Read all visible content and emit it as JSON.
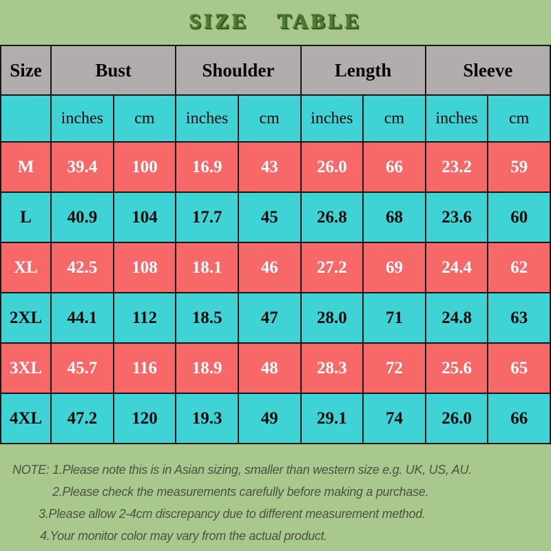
{
  "title": "SIZE TABLE",
  "colors": {
    "background_green": "#a8c88d",
    "title_green": "#4e7a33",
    "header_gray": "#b3acac",
    "row_cyan": "#3fd3d6",
    "row_red": "#f76969",
    "text_on_red": "#ffffff",
    "text_on_cyan": "#000000",
    "note_text": "#4b543f",
    "border": "#161616"
  },
  "table": {
    "headers": [
      {
        "label": "Size"
      },
      {
        "label": "Bust"
      },
      {
        "label": "Shoulder"
      },
      {
        "label": "Length"
      },
      {
        "label": "Sleeve"
      }
    ],
    "units_row": [
      "",
      "inches",
      "cm",
      "inches",
      "cm",
      "inches",
      "cm",
      "inches",
      "cm"
    ],
    "rows": [
      {
        "size": "M",
        "values": [
          "39.4",
          "100",
          "16.9",
          "43",
          "26.0",
          "66",
          "23.2",
          "59"
        ]
      },
      {
        "size": "L",
        "values": [
          "40.9",
          "104",
          "17.7",
          "45",
          "26.8",
          "68",
          "23.6",
          "60"
        ]
      },
      {
        "size": "XL",
        "values": [
          "42.5",
          "108",
          "18.1",
          "46",
          "27.2",
          "69",
          "24.4",
          "62"
        ]
      },
      {
        "size": "2XL",
        "values": [
          "44.1",
          "112",
          "18.5",
          "47",
          "28.0",
          "71",
          "24.8",
          "63"
        ]
      },
      {
        "size": "3XL",
        "values": [
          "45.7",
          "116",
          "18.9",
          "48",
          "28.3",
          "72",
          "25.6",
          "65"
        ]
      },
      {
        "size": "4XL",
        "values": [
          "47.2",
          "120",
          "19.3",
          "49",
          "29.1",
          "74",
          "26.0",
          "66"
        ]
      }
    ]
  },
  "notes": {
    "lines": [
      "NOTE: 1.Please note this is in Asian sizing, smaller than western size e.g. UK, US, AU.",
      "2.Please check the measurements carefully before making a purchase.",
      "3.Please allow 2-4cm discrepancy due to different measurement method.",
      "4.Your monitor color may vary from the actual product."
    ]
  },
  "chart_data": {
    "type": "table",
    "title": "SIZE TABLE",
    "columns": [
      "Size",
      "Bust (inches)",
      "Bust (cm)",
      "Shoulder (inches)",
      "Shoulder (cm)",
      "Length (inches)",
      "Length (cm)",
      "Sleeve (inches)",
      "Sleeve (cm)"
    ],
    "rows": [
      [
        "M",
        39.4,
        100,
        16.9,
        43,
        26.0,
        66,
        23.2,
        59
      ],
      [
        "L",
        40.9,
        104,
        17.7,
        45,
        26.8,
        68,
        23.6,
        60
      ],
      [
        "XL",
        42.5,
        108,
        18.1,
        46,
        27.2,
        69,
        24.4,
        62
      ],
      [
        "2XL",
        44.1,
        112,
        18.5,
        47,
        28.0,
        71,
        24.8,
        63
      ],
      [
        "3XL",
        45.7,
        116,
        18.9,
        48,
        28.3,
        72,
        25.6,
        65
      ],
      [
        "4XL",
        47.2,
        120,
        19.3,
        49,
        29.1,
        74,
        26.0,
        66
      ]
    ],
    "notes": [
      "NOTE: 1.Please note this is in Asian sizing, smaller than western size e.g. UK, US, AU.",
      "2.Please check the measurements carefully before making a purchase.",
      "3.Please allow 2-4cm discrepancy due to different measurement method.",
      "4.Your monitor color may vary from the actual product."
    ]
  }
}
